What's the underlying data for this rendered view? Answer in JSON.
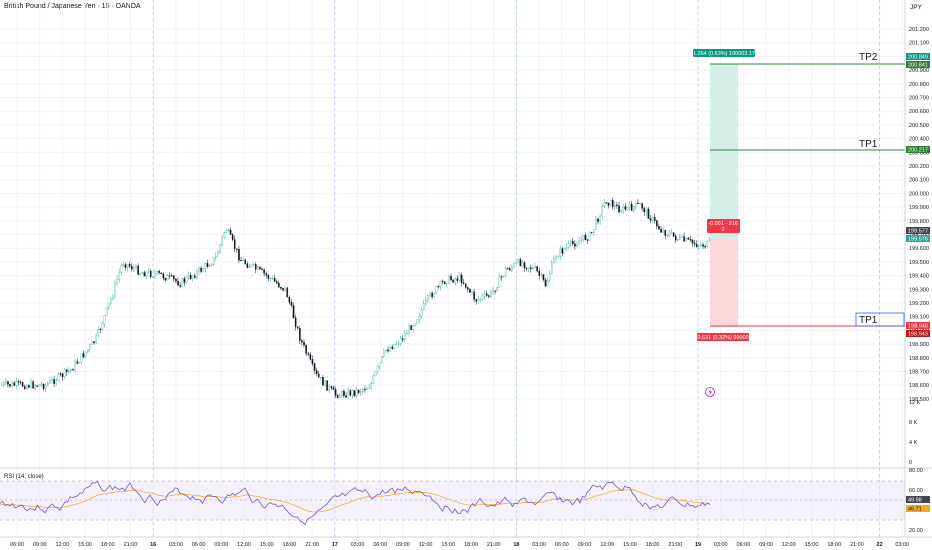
{
  "header": {
    "symbol_title": "British Pound / Japanese Yen · 15 · OANDA",
    "currency": "JPY"
  },
  "price_axis": {
    "ticks": [
      "201.200",
      "201.100",
      "201.000",
      "200.900",
      "200.800",
      "200.700",
      "200.600",
      "200.500",
      "200.400",
      "200.300",
      "200.200",
      "200.100",
      "200.000",
      "199.900",
      "199.800",
      "199.700",
      "199.600",
      "199.500",
      "199.400",
      "199.300",
      "199.200",
      "199.100",
      "199.000",
      "198.900",
      "198.800",
      "198.700",
      "198.600",
      "198.500"
    ],
    "volume_ticks": [
      "12 K",
      "8 K",
      "4 K",
      "0"
    ],
    "badges": {
      "tp2_a": "200.849",
      "tp2_b": "200.841",
      "tp1": "200.217",
      "last_a": "199.577",
      "last_b": "199.576",
      "sl_a": "198.948",
      "sl_b": "198.943"
    }
  },
  "rsi": {
    "label": "RSI (14, close)",
    "ticks": [
      "80.00",
      "60.00",
      "40.00",
      "20.00"
    ],
    "value_a": "49.98",
    "value_b": "46.71"
  },
  "time_axis": {
    "labels": [
      "06:00",
      "09:00",
      "12:00",
      "15:00",
      "18:00",
      "21:00",
      "16",
      "03:00",
      "06:00",
      "09:00",
      "12:00",
      "15:00",
      "18:00",
      "21:00",
      "17",
      "03:00",
      "06:00",
      "09:00",
      "12:00",
      "15:00",
      "18:00",
      "21:00",
      "18",
      "03:00",
      "06:00",
      "09:00",
      "12:00",
      "15:00",
      "18:00",
      "21:00",
      "19",
      "03:00",
      "06:00",
      "09:00",
      "12:00",
      "15:00",
      "18:00",
      "21:00",
      "22",
      "03:00"
    ]
  },
  "position_tool": {
    "target_label": "1.264 (0.63%) 100003.17",
    "current_label": "-0.001 · 316",
    "current_label_2": "2",
    "stop_label": "0.631 (0.32%) 99000"
  },
  "lines": {
    "tp2_text": "TP2",
    "tp1_text": "TP1",
    "tp1_low_text": "TP1"
  },
  "colors": {
    "up": "#26a69a",
    "down": "#131722",
    "target_zone": "#d4eee8",
    "stop_zone": "#fbd7dc",
    "tp_line": "#2e8b3f",
    "sl_line": "#f23645",
    "rsi_line": "#7e57c2",
    "rsi_ma": "#f5a623",
    "grid": "#f0f3fa"
  }
}
